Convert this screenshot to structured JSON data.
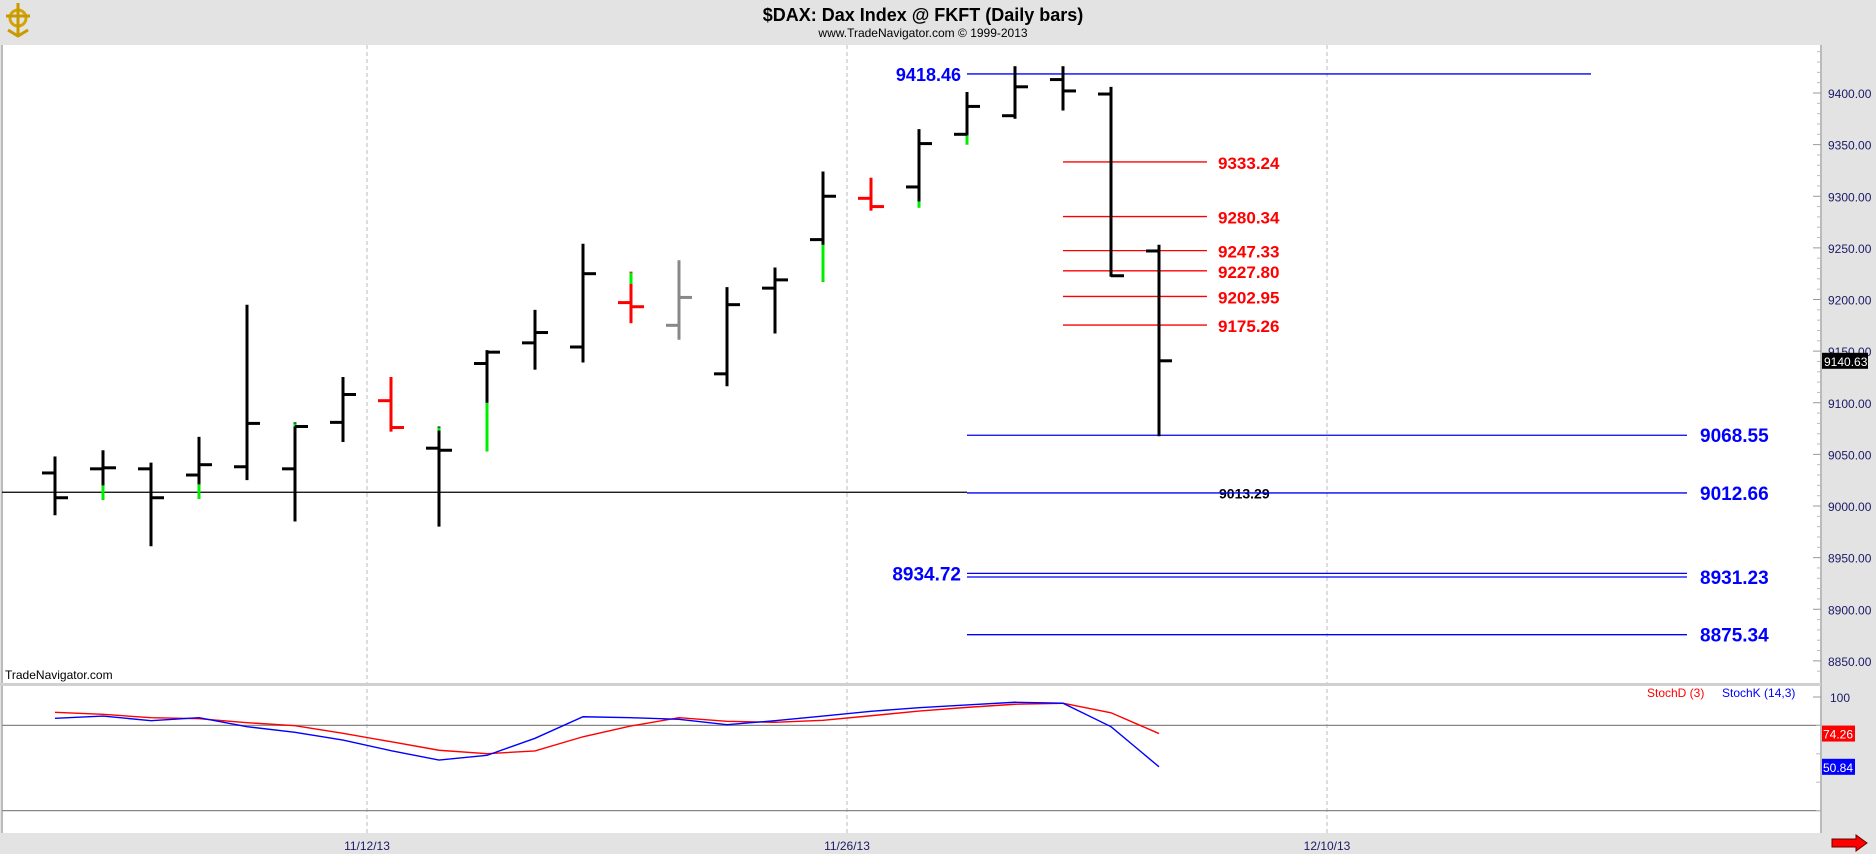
{
  "header": {
    "title": "$DAX:  Dax Index @ FKFT  (Daily bars)",
    "subtitle": "www.TradeNavigator.com © 1999-2013",
    "watermark": "TradeNavigator.com"
  },
  "colors": {
    "up_marker": "#00ee00",
    "bar": "#000000",
    "bar_red": "#ff0000",
    "bar_gray": "#888888",
    "level_blue": "#0000ff",
    "level_red": "#ff0000",
    "stoch_d": "#ff0000",
    "stoch_k": "#0000ff",
    "axis_text": "#1a1a66",
    "background": "#e3e3e3",
    "pane": "#ffffff"
  },
  "chart_data": [
    {
      "type": "ohlc",
      "title": "$DAX:  Dax Index @ FKFT  (Daily bars)",
      "y_ticks": [
        "9400.00",
        "9350.00",
        "9300.00",
        "9250.00",
        "9200.00",
        "9150.00",
        "9100.00",
        "9050.00",
        "9000.00",
        "8950.00",
        "8900.00",
        "8850.00"
      ],
      "ylim": [
        8830,
        9450
      ],
      "x_ticks": [
        "11/12/13",
        "11/26/13",
        "12/10/13"
      ],
      "grid": "vertical dashed at date ticks",
      "last_price": "9140.63",
      "bars": [
        {
          "o": 9032,
          "h": 9047,
          "l": 8992,
          "c": 9008,
          "color": "black"
        },
        {
          "o": 9036,
          "h": 9053,
          "l": 9007,
          "c": 9037,
          "color": "black",
          "green": [
            9007,
            9020
          ]
        },
        {
          "o": 9036,
          "h": 9041,
          "l": 8962,
          "c": 9008,
          "color": "black"
        },
        {
          "o": 9030,
          "h": 9066,
          "l": 9008,
          "c": 9040,
          "color": "black",
          "green": [
            9008,
            9021
          ]
        },
        {
          "o": 9038,
          "h": 9194,
          "l": 9026,
          "c": 9080,
          "color": "black"
        },
        {
          "o": 9036,
          "h": 9080,
          "l": 8986,
          "c": 9077,
          "color": "black",
          "green": [
            9078,
            9080
          ]
        },
        {
          "o": 9081,
          "h": 9124,
          "l": 9063,
          "c": 9108,
          "color": "black"
        },
        {
          "o": 9102,
          "h": 9124,
          "l": 9073,
          "c": 9076,
          "color": "red"
        },
        {
          "o": 9056,
          "h": 9076,
          "l": 8981,
          "c": 9054,
          "color": "black",
          "green": [
            9074,
            9076
          ]
        },
        {
          "o": 9138,
          "h": 9150,
          "l": 9054,
          "c": 9149,
          "color": "black",
          "green": [
            9054,
            9100
          ]
        },
        {
          "o": 9158,
          "h": 9189,
          "l": 9133,
          "c": 9168,
          "color": "black"
        },
        {
          "o": 9154,
          "h": 9253,
          "l": 9140,
          "c": 9225,
          "color": "black"
        },
        {
          "o": 9197,
          "h": 9226,
          "l": 9178,
          "c": 9193,
          "color": "red",
          "green": [
            9216,
            9226
          ]
        },
        {
          "o": 9175,
          "h": 9237,
          "l": 9162,
          "c": 9202,
          "color": "gray"
        },
        {
          "o": 9128,
          "h": 9211,
          "l": 9117,
          "c": 9195,
          "color": "black"
        },
        {
          "o": 9211,
          "h": 9230,
          "l": 9168,
          "c": 9219,
          "color": "black"
        },
        {
          "o": 9258,
          "h": 9323,
          "l": 9218,
          "c": 9300,
          "color": "black",
          "green": [
            9218,
            9253
          ]
        },
        {
          "o": 9298,
          "h": 9317,
          "l": 9287,
          "c": 9290,
          "color": "red"
        },
        {
          "o": 9309,
          "h": 9364,
          "l": 9290,
          "c": 9351,
          "color": "black",
          "green": [
            9290,
            9295
          ]
        },
        {
          "o": 9360,
          "h": 9400,
          "l": 9351,
          "c": 9387,
          "color": "black",
          "green": [
            9351,
            9359
          ]
        },
        {
          "o": 9378,
          "h": 9425,
          "l": 9376,
          "c": 9406,
          "color": "black"
        },
        {
          "o": 9413,
          "h": 9425,
          "l": 9384,
          "c": 9402,
          "color": "black"
        },
        {
          "o": 9399,
          "h": 9405,
          "l": 9223,
          "c": 9223,
          "color": "black"
        },
        {
          "o": 9247,
          "h": 9252,
          "l": 9068.55,
          "c": 9140.63,
          "color": "black"
        }
      ],
      "levels": [
        {
          "value": 9418.46,
          "label": "9418.46",
          "color": "blue",
          "label_side": "left"
        },
        {
          "value": 9333.24,
          "label": "9333.24",
          "color": "red",
          "label_side": "right"
        },
        {
          "value": 9280.34,
          "label": "9280.34",
          "color": "red",
          "label_side": "right"
        },
        {
          "value": 9247.33,
          "label": "9247.33",
          "color": "red",
          "label_side": "right"
        },
        {
          "value": 9227.8,
          "label": "9227.80",
          "color": "red",
          "label_side": "right"
        },
        {
          "value": 9202.95,
          "label": "9202.95",
          "color": "red",
          "label_side": "right"
        },
        {
          "value": 9175.26,
          "label": "9175.26",
          "color": "red",
          "label_side": "right"
        },
        {
          "value": 9068.55,
          "label": "9068.55",
          "color": "blue",
          "label_side": "right"
        },
        {
          "value": 9013.29,
          "label": "9013.29",
          "color": "black",
          "label_side": "middle"
        },
        {
          "value": 9012.66,
          "label": "9012.66",
          "color": "blue",
          "label_side": "right"
        },
        {
          "value": 8934.72,
          "label": "8934.72",
          "color": "blue",
          "label_side": "left"
        },
        {
          "value": 8931.23,
          "label": "8931.23",
          "color": "blue",
          "label_side": "right"
        },
        {
          "value": 8875.34,
          "label": "8875.34",
          "color": "blue",
          "label_side": "right"
        }
      ]
    },
    {
      "type": "line",
      "y_ticks": [
        "100"
      ],
      "ylim": [
        0,
        100
      ],
      "reference_lines": [
        80,
        20
      ],
      "series": [
        {
          "name": "StochD (3)",
          "color": "red",
          "last": "74.26",
          "values": [
            89.2,
            87.8,
            85.4,
            84.7,
            81.9,
            79.8,
            74.4,
            68.5,
            62.5,
            60.1,
            62.0,
            72.0,
            79.6,
            85.4,
            82.9,
            82.2,
            83.6,
            86.8,
            90.1,
            92.7,
            94.9,
            95.6,
            88.9,
            74.26
          ]
        },
        {
          "name": "StochK (14,3)",
          "color": "blue",
          "last": "50.84",
          "values": [
            85.0,
            86.6,
            83.3,
            85.4,
            79.1,
            75.1,
            69.7,
            62.2,
            55.6,
            58.9,
            70.9,
            86.1,
            85.4,
            84.3,
            80.5,
            83.3,
            86.6,
            89.9,
            92.5,
            94.4,
            96.3,
            95.6,
            79.1,
            50.84
          ]
        }
      ]
    }
  ]
}
